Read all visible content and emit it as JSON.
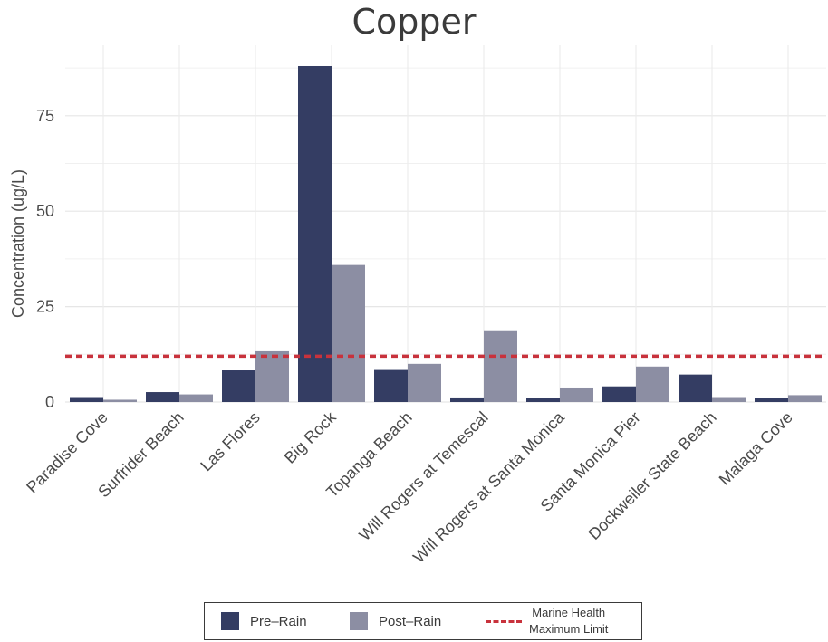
{
  "chart_data": {
    "type": "bar",
    "title": "Copper",
    "xlabel": "",
    "ylabel": "Concentration (ug/L)",
    "ylim": [
      0,
      90
    ],
    "yticks": [
      0,
      25,
      50,
      75
    ],
    "categories": [
      "Paradise Cove",
      "Surfrider Beach",
      "Las Flores",
      "Big Rock",
      "Topanga Beach",
      "Will Rogers at Temescal",
      "Will Rogers at Santa Monica",
      "Santa Monica Pier",
      "Dockweiler State Beach",
      "Malaga Cove"
    ],
    "series": [
      {
        "name": "Pre-Rain",
        "color": "#343d63",
        "values": [
          1.3,
          2.6,
          8.3,
          88.0,
          8.4,
          1.2,
          1.1,
          4.1,
          7.2,
          1.0
        ]
      },
      {
        "name": "Post-Rain",
        "color": "#8c8ea3",
        "values": [
          0.6,
          2.0,
          13.3,
          35.9,
          10.0,
          18.8,
          3.8,
          9.3,
          1.3,
          1.8
        ]
      }
    ],
    "reference_line": {
      "name_line1": "Marine Health",
      "name_line2": "Maximum Limit",
      "value": 12,
      "color": "#c8323c",
      "style": "dashed"
    },
    "grid": true,
    "legend_position": "bottom"
  },
  "legend": {
    "pre_label": "Pre–Rain",
    "post_label": "Post–Rain",
    "limit_line1": "Marine Health",
    "limit_line2": "Maximum Limit"
  }
}
